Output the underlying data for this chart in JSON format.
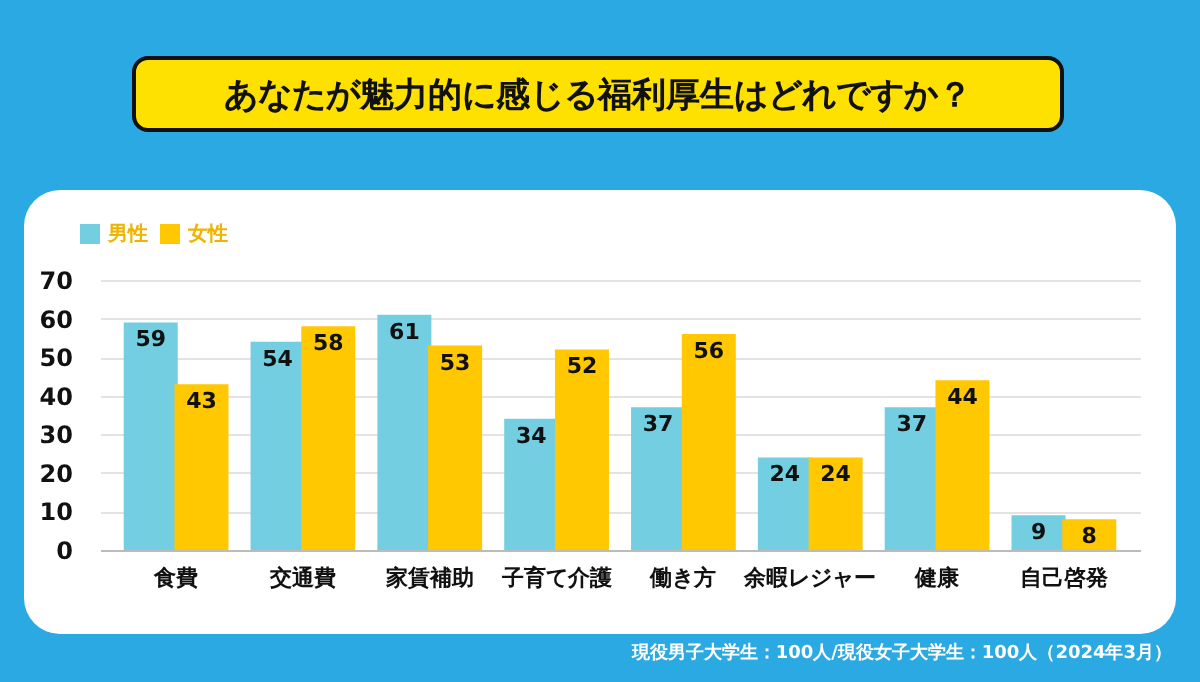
{
  "chart_data": {
    "type": "bar",
    "title": "あなたが魅力的に感じる福利厚生はどれですか？",
    "categories": [
      "食費",
      "交通費",
      "家賃補助",
      "子育て介護",
      "働き方",
      "余暇レジャー",
      "健康",
      "自己啓発"
    ],
    "series": [
      {
        "name": "男性",
        "color": "#72cee0",
        "values": [
          59,
          54,
          61,
          34,
          37,
          24,
          37,
          9
        ]
      },
      {
        "name": "女性",
        "color": "#ffc800",
        "values": [
          43,
          58,
          53,
          52,
          56,
          24,
          44,
          8
        ]
      }
    ],
    "ylim": [
      0,
      70
    ],
    "yticks": [
      0,
      10,
      20,
      30,
      40,
      50,
      60,
      70
    ],
    "grid": "y",
    "legend": "top left",
    "data_labels": true,
    "annotations": [
      "現役男子大学生：100人/現役女子大学生：100人（2024年3月）"
    ]
  }
}
